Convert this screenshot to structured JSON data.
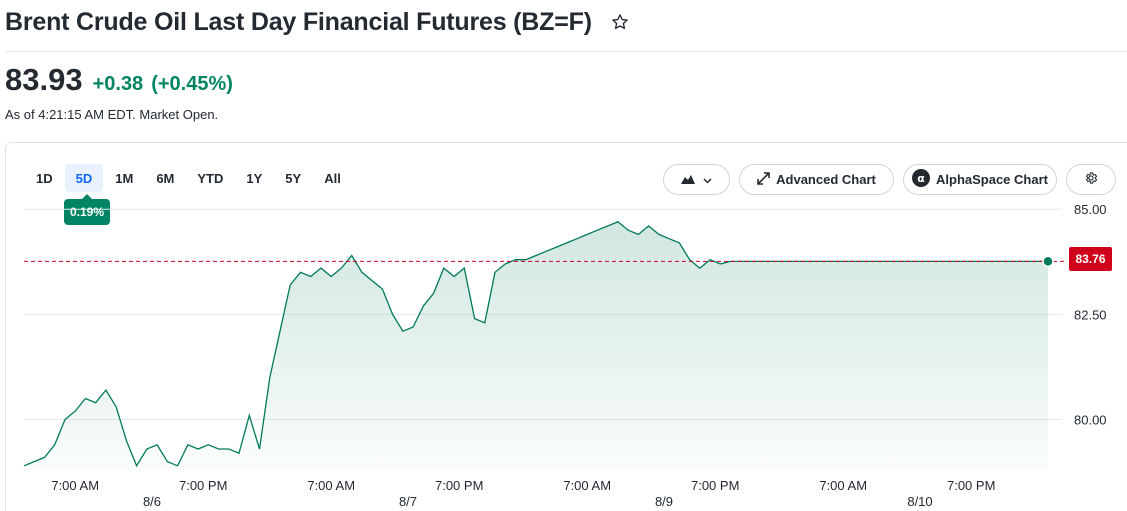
{
  "header": {
    "title": "Brent Crude Oil Last Day Financial Futures (BZ=F)",
    "star_icon": "star-outline-icon"
  },
  "quote": {
    "price": "83.93",
    "change": "+0.38",
    "change_pct": "(+0.45%)",
    "as_of": "As of 4:21:15 AM EDT. Market Open.",
    "up_color": "#008463"
  },
  "range_tabs": [
    {
      "label": "1D"
    },
    {
      "label": "5D"
    },
    {
      "label": "1M"
    },
    {
      "label": "6M"
    },
    {
      "label": "YTD"
    },
    {
      "label": "1Y"
    },
    {
      "label": "5Y"
    },
    {
      "label": "All"
    }
  ],
  "active_range": "5D",
  "range_badge": "0.19%",
  "toolbar": {
    "chart_type_icon": "mountain-chart-icon",
    "advanced_chart_label": "Advanced Chart",
    "advanced_chart_icon": "expand-arrows-icon",
    "alphaspace_label": "AlphaSpace Chart",
    "alphaspace_icon": "alpha-icon",
    "settings_icon": "gear-icon"
  },
  "current_price_tag": "83.76",
  "chart_data": {
    "type": "area",
    "title": "",
    "xlabel": "",
    "ylabel": "",
    "ylim": [
      78.8,
      85.1
    ],
    "yticks": [
      "85.00",
      "82.50",
      "80.00"
    ],
    "ytick_values": [
      85.0,
      82.5,
      80.0
    ],
    "xtick_labels": [
      "7:00 AM",
      "7:00 PM",
      "7:00 AM",
      "7:00 PM",
      "7:00 AM",
      "7:00 PM",
      "7:00 AM",
      "7:00 PM"
    ],
    "date_labels": [
      "8/6",
      "8/7",
      "8/9",
      "8/10"
    ],
    "reference_line": 83.76,
    "line_color": "#007a5a",
    "x": [
      0,
      2,
      4,
      6,
      8,
      10,
      12,
      14,
      16,
      18,
      20,
      22,
      24,
      26,
      28,
      30,
      32,
      34,
      36,
      38,
      40,
      42,
      44,
      46,
      48,
      50,
      52,
      54,
      56,
      58,
      60,
      62,
      64,
      66,
      68,
      70,
      72,
      74,
      76,
      78,
      80,
      82,
      84,
      86,
      88,
      90,
      92,
      94,
      96,
      98,
      100,
      102,
      104,
      106,
      108,
      110,
      112,
      114,
      116,
      118,
      120,
      122,
      124,
      126,
      128,
      130,
      132,
      134,
      136,
      138,
      140,
      142,
      144,
      146,
      148,
      150,
      152,
      154,
      156,
      158,
      160,
      162,
      164,
      166,
      168,
      170,
      172,
      174,
      176,
      178,
      180,
      182,
      184,
      186,
      188,
      190,
      192,
      194,
      196,
      198,
      200
    ],
    "values": [
      78.9,
      79.0,
      79.1,
      79.4,
      80.0,
      80.2,
      80.5,
      80.4,
      80.7,
      80.3,
      79.5,
      78.9,
      79.3,
      79.4,
      79.0,
      78.9,
      79.4,
      79.3,
      79.4,
      79.3,
      79.3,
      79.2,
      80.1,
      79.3,
      81.0,
      82.1,
      83.2,
      83.5,
      83.4,
      83.6,
      83.4,
      83.6,
      83.9,
      83.5,
      83.3,
      83.1,
      82.5,
      82.1,
      82.2,
      82.7,
      83.0,
      83.6,
      83.4,
      83.6,
      82.4,
      82.3,
      83.5,
      83.7,
      83.8,
      83.8,
      83.9,
      84.0,
      84.1,
      84.2,
      84.3,
      84.4,
      84.5,
      84.6,
      84.7,
      84.5,
      84.4,
      84.6,
      84.4,
      84.3,
      84.2,
      83.8,
      83.6,
      83.8,
      83.7,
      83.76,
      83.76,
      83.76,
      83.76,
      83.76,
      83.76,
      83.76,
      83.76,
      83.76,
      83.76,
      83.76,
      83.76,
      83.76,
      83.76,
      83.76,
      83.76,
      83.76,
      83.76,
      83.76,
      83.76,
      83.76,
      83.76,
      83.76,
      83.76,
      83.76,
      83.76,
      83.76,
      83.76,
      83.76,
      83.76,
      83.76,
      83.76
    ]
  }
}
